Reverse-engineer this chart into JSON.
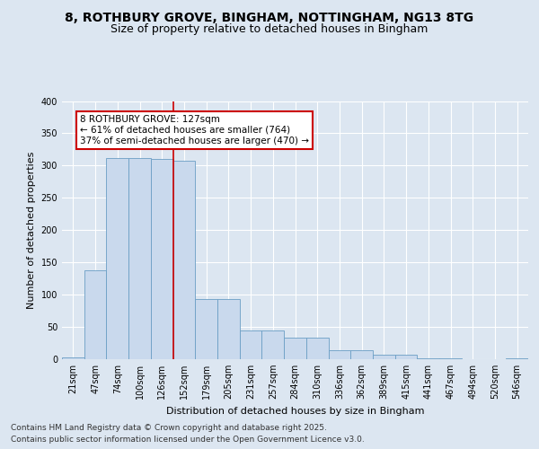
{
  "title_line1": "8, ROTHBURY GROVE, BINGHAM, NOTTINGHAM, NG13 8TG",
  "title_line2": "Size of property relative to detached houses in Bingham",
  "xlabel": "Distribution of detached houses by size in Bingham",
  "ylabel": "Number of detached properties",
  "categories": [
    "21sqm",
    "47sqm",
    "74sqm",
    "100sqm",
    "126sqm",
    "152sqm",
    "179sqm",
    "205sqm",
    "231sqm",
    "257sqm",
    "284sqm",
    "310sqm",
    "336sqm",
    "362sqm",
    "389sqm",
    "415sqm",
    "441sqm",
    "467sqm",
    "494sqm",
    "520sqm",
    "546sqm"
  ],
  "values": [
    3,
    138,
    311,
    311,
    310,
    307,
    93,
    93,
    45,
    45,
    33,
    33,
    14,
    14,
    7,
    7,
    1,
    1,
    0,
    0,
    2
  ],
  "bar_color": "#c9d9ed",
  "bar_edge_color": "#6a9ec5",
  "property_line_x": 4.5,
  "property_line_color": "#cc0000",
  "annotation_text": "8 ROTHBURY GROVE: 127sqm\n← 61% of detached houses are smaller (764)\n37% of semi-detached houses are larger (470) →",
  "annotation_box_color": "#ffffff",
  "annotation_box_edge": "#cc0000",
  "bg_color": "#dce6f1",
  "plot_bg_color": "#dce6f1",
  "grid_color": "#ffffff",
  "ylim": [
    0,
    400
  ],
  "yticks": [
    0,
    50,
    100,
    150,
    200,
    250,
    300,
    350,
    400
  ],
  "footer_line1": "Contains HM Land Registry data © Crown copyright and database right 2025.",
  "footer_line2": "Contains public sector information licensed under the Open Government Licence v3.0.",
  "title_fontsize": 10,
  "subtitle_fontsize": 9,
  "ylabel_fontsize": 8,
  "xlabel_fontsize": 8,
  "tick_fontsize": 7,
  "annotation_fontsize": 7.5,
  "footer_fontsize": 6.5
}
